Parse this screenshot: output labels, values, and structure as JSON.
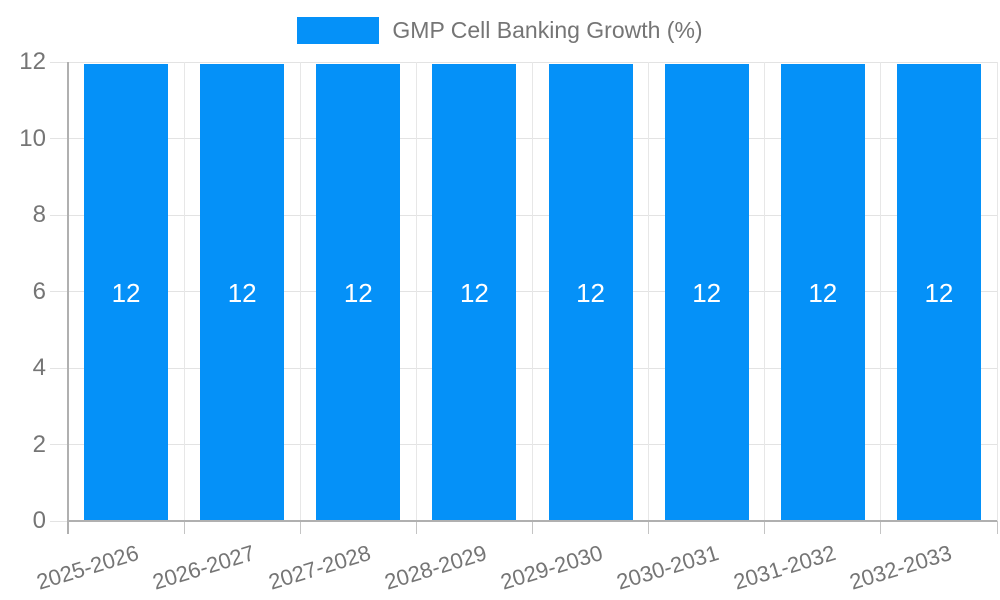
{
  "chart_data": {
    "type": "bar",
    "title": "",
    "xlabel": "",
    "ylabel": "",
    "categories": [
      "2025-2026",
      "2026-2027",
      "2027-2028",
      "2028-2029",
      "2029-2030",
      "2030-2031",
      "2031-2032",
      "2032-2033"
    ],
    "series": [
      {
        "name": "GMP Cell Banking Growth (%)",
        "values": [
          12,
          12,
          12,
          12,
          12,
          12,
          12,
          12
        ]
      }
    ],
    "bar_value_labels": [
      "12",
      "12",
      "12",
      "12",
      "12",
      "12",
      "12",
      "12"
    ],
    "ylim": [
      0,
      12
    ],
    "yticks": [
      0,
      2,
      4,
      6,
      8,
      10,
      12
    ],
    "grid": true,
    "legend_position": "top-center",
    "x_tick_rotation_deg": -17,
    "colors": {
      "bar": "#0591f8",
      "bar_label_text": "#ffffff",
      "axis_text": "#757575",
      "gridline": "#e3e3e3",
      "boundary_line": "#e7e7e7",
      "axis_line": "#b0b0b0",
      "tick": "#c4c4c4",
      "background": "#ffffff"
    }
  }
}
